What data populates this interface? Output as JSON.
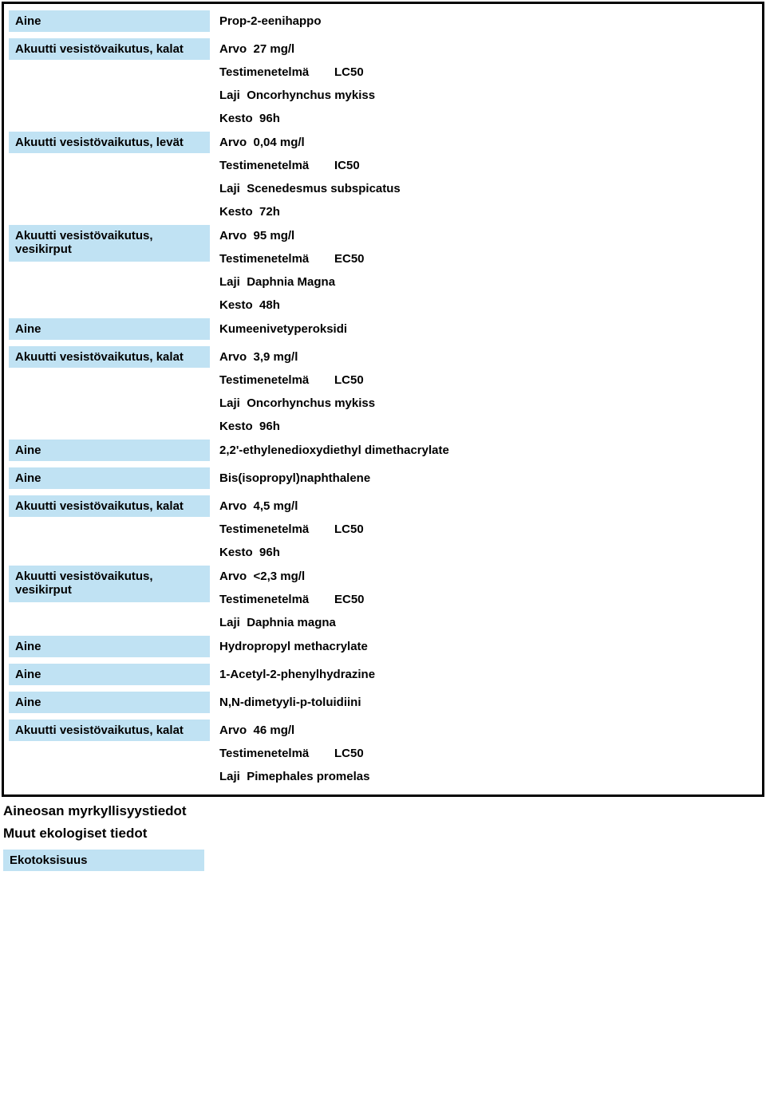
{
  "colors": {
    "label_bg": "#c0e2f3",
    "border": "#000000",
    "text": "#000000",
    "page_bg": "#ffffff"
  },
  "typography": {
    "font_family": "Arial",
    "font_weight": "bold",
    "body_size_pt": 11,
    "heading_size_pt": 13
  },
  "labels": {
    "aine": "Aine",
    "fish": "Akuutti vesistövaikutus, kalat",
    "algae": "Akuutti vesistövaikutus, levät",
    "daphnia": "Akuutti vesistövaikutus, vesikirput",
    "ekotoks": "Ekotoksisuus"
  },
  "keys": {
    "arvo": "Arvo",
    "testimenetelma": "Testimenetelmä",
    "laji": "Laji",
    "kesto": "Kesto"
  },
  "s1": {
    "substance": "Prop-2-eenihappo",
    "fish": {
      "arvo": "27 mg/l",
      "method": "LC50",
      "laji": "Oncorhynchus mykiss",
      "kesto": "96h"
    },
    "algae": {
      "arvo": "0,04 mg/l",
      "method": "IC50",
      "laji": "Scenedesmus subspicatus",
      "kesto": "72h"
    },
    "daphnia": {
      "arvo": "95 mg/l",
      "method": "EC50",
      "laji": "Daphnia Magna",
      "kesto": "48h"
    }
  },
  "s2": {
    "substance": "Kumeenivetyperoksidi",
    "fish": {
      "arvo": "3,9 mg/l",
      "method": "LC50",
      "laji": "Oncorhynchus mykiss",
      "kesto": "96h"
    }
  },
  "s3": {
    "substance": "2,2'-ethylenedioxydiethyl dimethacrylate"
  },
  "s4": {
    "substance": "Bis(isopropyl)naphthalene",
    "fish": {
      "arvo": "4,5 mg/l",
      "method": "LC50",
      "kesto": "96h"
    },
    "daphnia": {
      "arvo": "<2,3 mg/l",
      "method": "EC50",
      "laji": "Daphnia magna"
    }
  },
  "s5": {
    "substance": "Hydropropyl methacrylate"
  },
  "s6": {
    "substance": "1-Acetyl-2-phenylhydrazine"
  },
  "s7": {
    "substance": "N,N-dimetyyli-p-toluidiini",
    "fish": {
      "arvo": "46 mg/l",
      "method": "LC50",
      "laji": "Pimephales promelas"
    }
  },
  "footer": {
    "h1": "Aineosan myrkyllisyystiedot",
    "h2": "Muut ekologiset tiedot"
  }
}
